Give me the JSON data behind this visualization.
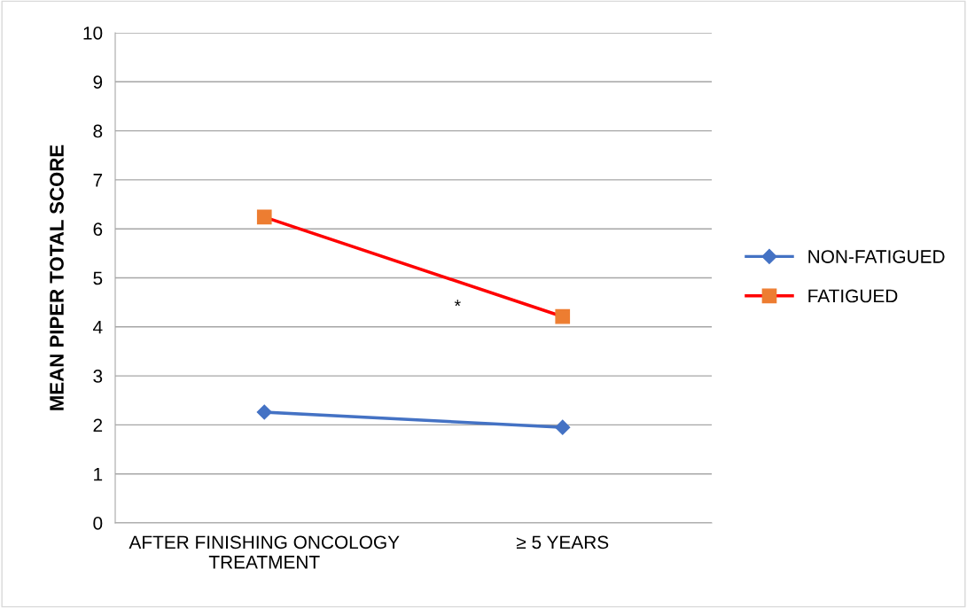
{
  "chart_data": {
    "type": "line",
    "ylabel": "MEAN PIPER TOTAL SCORE",
    "categories": [
      "AFTER FINISHING ONCOLOGY\nTREATMENT",
      "≥ 5 YEARS"
    ],
    "series": [
      {
        "name": "NON-FATIGUED",
        "color": "#4472c4",
        "marker": "diamond",
        "values": [
          2.26,
          1.95
        ]
      },
      {
        "name": "FATIGUED",
        "color": "#ff0000",
        "colors": [
          "#ed7d31",
          "#ed7d31"
        ],
        "marker": "square",
        "values": [
          6.24,
          4.21
        ]
      }
    ],
    "ylim": [
      0,
      10
    ],
    "yticks": [
      0,
      1,
      2,
      3,
      4,
      5,
      6,
      7,
      8,
      9,
      10
    ],
    "grid": "y",
    "legend": "right",
    "line_style": "solid",
    "annotations": [
      "*"
    ]
  }
}
